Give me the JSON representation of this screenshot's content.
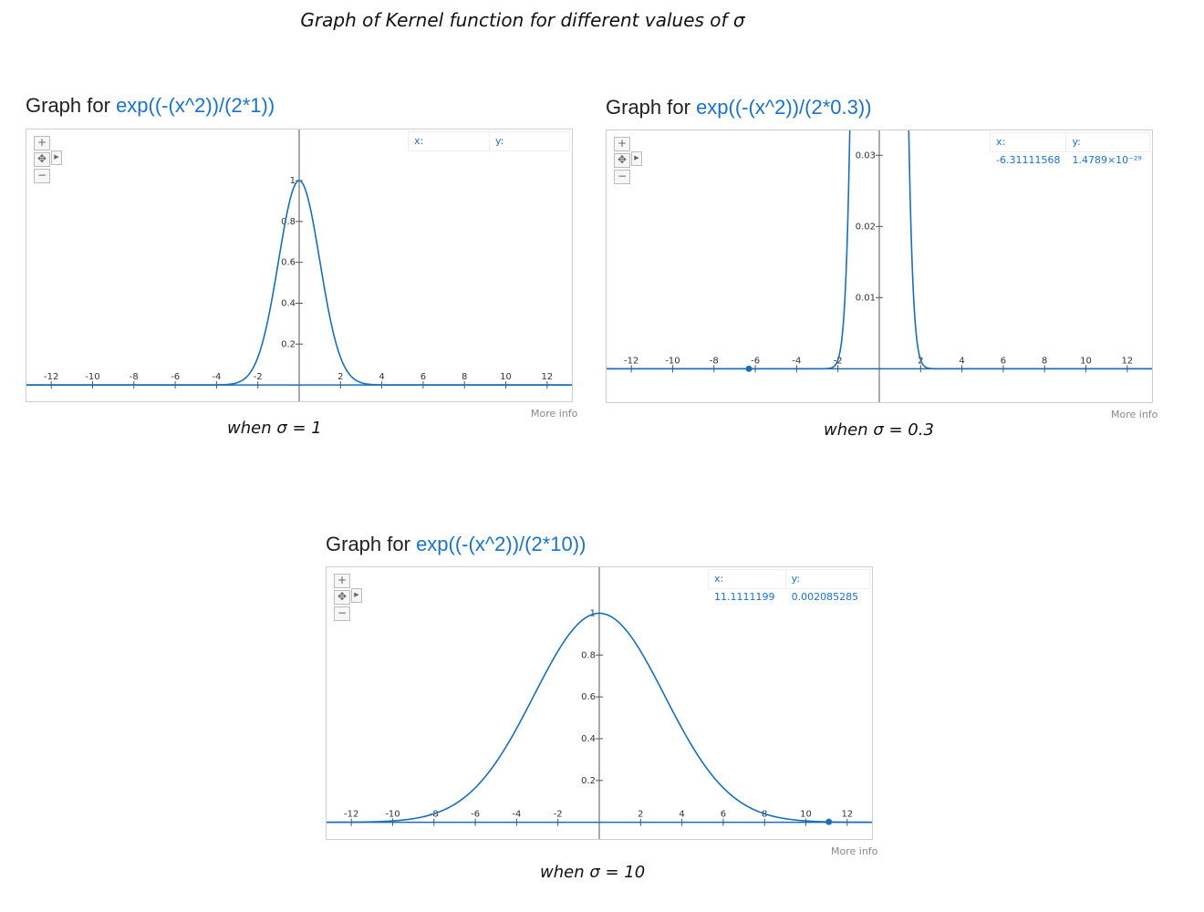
{
  "page_title": "Graph of Kernel function for different values of σ",
  "colors": {
    "curve": "#1a6fb8",
    "axis": "#555555",
    "expression": "#1a73c8",
    "readout": "#1a73c8"
  },
  "icons": {
    "zoom_in": "plus-icon",
    "pan": "move-icon",
    "pan_arrow": "chevron-right-icon",
    "zoom_out": "minus-icon"
  },
  "graphs": [
    {
      "title_prefix": "Graph for",
      "expression": "exp((-(x^2))/(2*1))",
      "readout_x": "x:",
      "readout_y": "y:",
      "more_info": "More info",
      "caption": "when σ = 1"
    },
    {
      "title_prefix": "Graph for",
      "expression": "exp((-(x^2))/(2*0.3))",
      "readout_x": "x: -6.31111568",
      "readout_y": "y: 1.4789×10⁻²⁹",
      "more_info": "More info",
      "caption": "when σ = 0.3"
    },
    {
      "title_prefix": "Graph for",
      "expression": "exp((-(x^2))/(2*10))",
      "readout_x": "x: 11.1111199",
      "readout_y": "y: 0.002085285",
      "more_info": "More info",
      "caption": "when σ = 10"
    }
  ],
  "chart_data": [
    {
      "type": "line",
      "function": "exp(-(x^2)/(2*1))",
      "variance_denominator": 2,
      "xlim": [
        -13.2,
        13.2
      ],
      "ylim": [
        -0.08,
        1.25
      ],
      "x_ticks": [
        -12,
        -10,
        -8,
        -6,
        -4,
        -2,
        2,
        4,
        6,
        8,
        10,
        12
      ],
      "y_ticks": [
        0.2,
        0.4,
        0.6,
        0.8,
        1
      ],
      "y_tick_labels": [
        "0.2",
        "0.4",
        "0.6",
        "0.8",
        "1"
      ],
      "marker": null,
      "grid": false
    },
    {
      "type": "line",
      "function": "exp(-(x^2)/(2*0.3))",
      "variance_denominator": 0.6,
      "xlim": [
        -13.2,
        13.2
      ],
      "ylim": [
        -0.0047,
        0.0335
      ],
      "x_ticks": [
        -12,
        -10,
        -8,
        -6,
        -4,
        -2,
        2,
        4,
        6,
        8,
        10,
        12
      ],
      "y_ticks": [
        0.01,
        0.02,
        0.03
      ],
      "y_tick_labels": [
        "0.01",
        "0.02",
        "0.03"
      ],
      "marker": {
        "x": -6.31111568,
        "y": 0
      },
      "grid": false
    },
    {
      "type": "line",
      "function": "exp(-(x^2)/(2*10))",
      "variance_denominator": 20,
      "xlim": [
        -13.2,
        13.2
      ],
      "ylim": [
        -0.08,
        1.22
      ],
      "x_ticks": [
        -12,
        -10,
        -8,
        -6,
        -4,
        -2,
        2,
        4,
        6,
        8,
        10,
        12
      ],
      "y_ticks": [
        0.2,
        0.4,
        0.6,
        0.8,
        1
      ],
      "y_tick_labels": [
        "0.2",
        "0.4",
        "0.6",
        "0.8",
        "1"
      ],
      "marker": {
        "x": 11.1111199,
        "y": 0.002085285
      },
      "grid": false
    }
  ]
}
